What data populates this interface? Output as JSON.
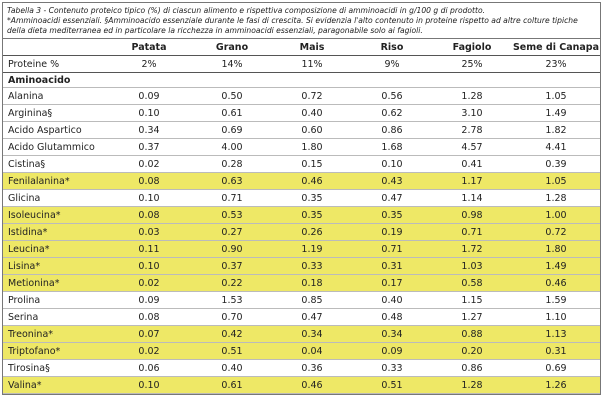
{
  "caption": {
    "title": "Tabella 3 - Contenuto proteico tipico (%) di ciascun alimento e rispettiva composizione di amminoacidi in g/100 g di prodotto.",
    "note": "*Amminoacidi essenziali. §Amminoacido essenziale durante le fasi di crescita. Si evidenzia l'alto contenuto in proteine rispetto ad altre colture tipiche della dieta mediterranea ed in particolare la ricchezza in amminoacidi essenziali, paragonabile solo ai fagioli."
  },
  "table": {
    "columns": [
      "Patata",
      "Grano",
      "Mais",
      "Riso",
      "Fagiolo",
      "Seme di Canapa"
    ],
    "protein": {
      "label": "Proteine %",
      "values": [
        "2%",
        "14%",
        "11%",
        "9%",
        "25%",
        "23%"
      ]
    },
    "section": "Aminoacido",
    "highlight_color": "#eee866",
    "rows": [
      [
        "Alanina",
        "0.09",
        "0.50",
        "0.72",
        "0.56",
        "1.28",
        "1.05"
      ],
      [
        "Arginina§",
        "0.10",
        "0.61",
        "0.40",
        "0.62",
        "3.10",
        "1.49"
      ],
      [
        "Acido Aspartico",
        "0.34",
        "0.69",
        "0.60",
        "0.86",
        "2.78",
        "1.82"
      ],
      [
        "Acido Glutammico",
        "0.37",
        "4.00",
        "1.80",
        "1.68",
        "4.57",
        "4.41"
      ],
      [
        "Cistina§",
        "0.02",
        "0.28",
        "0.15",
        "0.10",
        "0.41",
        "0.39"
      ],
      [
        "Fenilalanina*",
        "0.08",
        "0.63",
        "0.46",
        "0.43",
        "1.17",
        "1.05"
      ],
      [
        "Glicina",
        "0.10",
        "0.71",
        "0.35",
        "0.47",
        "1.14",
        "1.28"
      ],
      [
        "Isoleucina*",
        "0.08",
        "0.53",
        "0.35",
        "0.35",
        "0.98",
        "1.00"
      ],
      [
        "Istidina*",
        "0.03",
        "0.27",
        "0.26",
        "0.19",
        "0.71",
        "0.72"
      ],
      [
        "Leucina*",
        "0.11",
        "0.90",
        "1.19",
        "0.71",
        "1.72",
        "1.80"
      ],
      [
        "Lisina*",
        "0.10",
        "0.37",
        "0.33",
        "0.31",
        "1.03",
        "1.49"
      ],
      [
        "Metionina*",
        "0.02",
        "0.22",
        "0.18",
        "0.17",
        "0.58",
        "0.46"
      ],
      [
        "Prolina",
        "0.09",
        "1.53",
        "0.85",
        "0.40",
        "1.15",
        "1.59"
      ],
      [
        "Serina",
        "0.08",
        "0.70",
        "0.47",
        "0.48",
        "1.27",
        "1.10"
      ],
      [
        "Treonina*",
        "0.07",
        "0.42",
        "0.34",
        "0.34",
        "0.88",
        "1.13"
      ],
      [
        "Triptofano*",
        "0.02",
        "0.51",
        "0.04",
        "0.09",
        "0.20",
        "0.31"
      ],
      [
        "Tirosina§",
        "0.06",
        "0.40",
        "0.36",
        "0.33",
        "0.86",
        "0.69"
      ],
      [
        "Valina*",
        "0.10",
        "0.61",
        "0.46",
        "0.51",
        "1.28",
        "1.26"
      ]
    ]
  }
}
